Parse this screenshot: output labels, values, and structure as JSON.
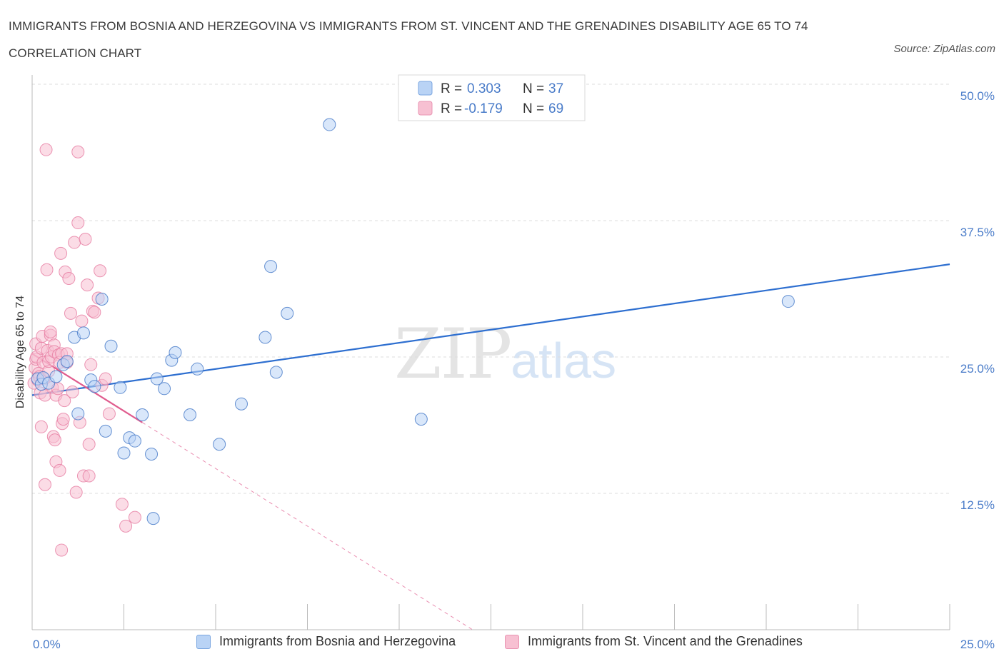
{
  "title": "IMMIGRANTS FROM BOSNIA AND HERZEGOVINA VS IMMIGRANTS FROM ST. VINCENT AND THE GRENADINES DISABILITY AGE 65 TO 74 CORRELATION CHART",
  "source": "Source: ZipAtlas.com",
  "watermark": {
    "zip": "ZIP",
    "atlas": "atlas"
  },
  "colors": {
    "blue": "#4a7cc9",
    "blue_fill": "#b9d3f5",
    "blue_line": "#2e6fd0",
    "pink": "#e67aa0",
    "pink_fill": "#f7c0d2",
    "pink_line": "#e05c8e",
    "grid": "#dddddd"
  },
  "legend": {
    "rows": [
      {
        "r_label": "R = ",
        "r_value": "0.303",
        "n_label": "N = ",
        "n_value": "37"
      },
      {
        "r_label": "R = ",
        "r_value": "-0.179",
        "n_label": "N = ",
        "n_value": "69"
      }
    ]
  },
  "chart_data": {
    "type": "scatter",
    "ylabel": "Disability Age 65 to 74",
    "xlim": [
      0,
      25
    ],
    "ylim": [
      0,
      50
    ],
    "x_tick_labels": [
      "0.0%",
      "25.0%"
    ],
    "y_tick_labels": [
      "12.5%",
      "25.0%",
      "37.5%",
      "50.0%"
    ],
    "y_ticks": [
      12.5,
      25,
      37.5,
      50
    ],
    "grid": "horizontal dashed",
    "legend_position": "top-center",
    "series": [
      {
        "name": "Immigrants from Bosnia and Herzegovina",
        "color": "blue",
        "trend": {
          "x": [
            0,
            25
          ],
          "y": [
            21.5,
            33.5
          ],
          "dashed_extension": false
        },
        "points": [
          [
            0.15,
            23.0
          ],
          [
            0.25,
            22.5
          ],
          [
            0.3,
            23.1
          ],
          [
            0.45,
            22.6
          ],
          [
            0.65,
            23.2
          ],
          [
            0.85,
            24.3
          ],
          [
            0.95,
            24.6
          ],
          [
            1.15,
            26.8
          ],
          [
            1.25,
            19.8
          ],
          [
            1.4,
            27.2
          ],
          [
            1.6,
            22.9
          ],
          [
            1.7,
            22.3
          ],
          [
            1.9,
            30.3
          ],
          [
            2.0,
            18.2
          ],
          [
            2.15,
            26.0
          ],
          [
            2.4,
            22.2
          ],
          [
            2.5,
            16.2
          ],
          [
            2.65,
            17.6
          ],
          [
            2.8,
            17.3
          ],
          [
            3.0,
            19.7
          ],
          [
            3.25,
            16.1
          ],
          [
            3.3,
            10.2
          ],
          [
            3.4,
            23.0
          ],
          [
            3.6,
            22.1
          ],
          [
            3.8,
            24.7
          ],
          [
            3.9,
            25.4
          ],
          [
            4.3,
            19.7
          ],
          [
            4.5,
            23.9
          ],
          [
            5.1,
            17.0
          ],
          [
            5.7,
            20.7
          ],
          [
            6.35,
            26.8
          ],
          [
            6.5,
            33.3
          ],
          [
            6.65,
            23.6
          ],
          [
            6.95,
            29.0
          ],
          [
            8.1,
            46.3
          ],
          [
            10.6,
            19.3
          ],
          [
            20.6,
            30.1
          ]
        ]
      },
      {
        "name": "Immigrants from St. Vincent and the Grenadines",
        "color": "pink",
        "trend": {
          "x": [
            0,
            3.0
          ],
          "y": [
            25.3,
            19.0
          ],
          "dashed_extension": true,
          "dashed_to": [
            12.0,
            0
          ]
        },
        "points": [
          [
            0.05,
            22.6
          ],
          [
            0.08,
            24.0
          ],
          [
            0.1,
            24.8
          ],
          [
            0.1,
            26.2
          ],
          [
            0.12,
            25.0
          ],
          [
            0.15,
            22.9
          ],
          [
            0.18,
            23.5
          ],
          [
            0.2,
            23.2
          ],
          [
            0.22,
            21.7
          ],
          [
            0.25,
            18.6
          ],
          [
            0.25,
            25.8
          ],
          [
            0.28,
            26.9
          ],
          [
            0.3,
            24.5
          ],
          [
            0.32,
            23.0
          ],
          [
            0.35,
            21.5
          ],
          [
            0.35,
            13.3
          ],
          [
            0.38,
            44.0
          ],
          [
            0.4,
            33.0
          ],
          [
            0.42,
            25.6
          ],
          [
            0.45,
            23.7
          ],
          [
            0.45,
            24.6
          ],
          [
            0.5,
            27.0
          ],
          [
            0.5,
            27.3
          ],
          [
            0.52,
            25.0
          ],
          [
            0.55,
            22.2
          ],
          [
            0.58,
            17.7
          ],
          [
            0.6,
            26.1
          ],
          [
            0.6,
            25.5
          ],
          [
            0.62,
            17.4
          ],
          [
            0.65,
            21.5
          ],
          [
            0.65,
            15.4
          ],
          [
            0.7,
            22.1
          ],
          [
            0.72,
            25.2
          ],
          [
            0.75,
            24.5
          ],
          [
            0.75,
            14.6
          ],
          [
            0.78,
            34.5
          ],
          [
            0.8,
            25.3
          ],
          [
            0.8,
            7.3
          ],
          [
            0.82,
            18.9
          ],
          [
            0.85,
            19.3
          ],
          [
            0.88,
            21.0
          ],
          [
            0.9,
            32.8
          ],
          [
            0.95,
            25.3
          ],
          [
            0.95,
            24.5
          ],
          [
            1.0,
            32.2
          ],
          [
            1.05,
            29.0
          ],
          [
            1.1,
            21.8
          ],
          [
            1.15,
            35.5
          ],
          [
            1.2,
            12.6
          ],
          [
            1.25,
            43.8
          ],
          [
            1.25,
            37.3
          ],
          [
            1.3,
            19.0
          ],
          [
            1.35,
            28.3
          ],
          [
            1.4,
            14.1
          ],
          [
            1.45,
            35.8
          ],
          [
            1.5,
            31.6
          ],
          [
            1.55,
            14.1
          ],
          [
            1.55,
            17.0
          ],
          [
            1.6,
            24.3
          ],
          [
            1.65,
            29.2
          ],
          [
            1.7,
            29.1
          ],
          [
            1.8,
            30.4
          ],
          [
            1.85,
            32.9
          ],
          [
            1.9,
            22.4
          ],
          [
            2.0,
            23.0
          ],
          [
            2.1,
            19.8
          ],
          [
            2.45,
            11.5
          ],
          [
            2.55,
            9.5
          ],
          [
            2.8,
            10.3
          ]
        ]
      }
    ]
  },
  "bottom_legend": [
    {
      "label": "Immigrants from Bosnia and Herzegovina"
    },
    {
      "label": "Immigrants from St. Vincent and the Grenadines"
    }
  ]
}
